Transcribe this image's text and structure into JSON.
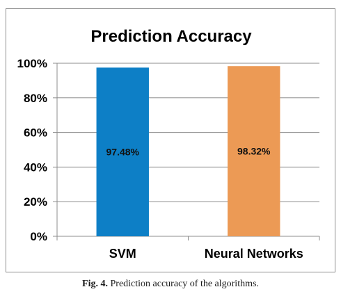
{
  "chart_data": {
    "type": "bar",
    "title": "Prediction Accuracy",
    "categories": [
      "SVM",
      "Neural Networks"
    ],
    "values": [
      97.48,
      98.32
    ],
    "data_labels": [
      "97.48%",
      "98.32%"
    ],
    "colors": [
      "#0d7fc6",
      "#ec9a55"
    ],
    "ylim": [
      0,
      100
    ],
    "yticks": [
      0,
      20,
      40,
      60,
      80,
      100
    ],
    "ytick_labels": [
      "0%",
      "20%",
      "40%",
      "60%",
      "80%",
      "100%"
    ],
    "xlabel": "",
    "ylabel": "",
    "grid": true,
    "legend": "none"
  },
  "caption": {
    "label": "Fig. 4.",
    "text": "Prediction accuracy of the algorithms."
  }
}
